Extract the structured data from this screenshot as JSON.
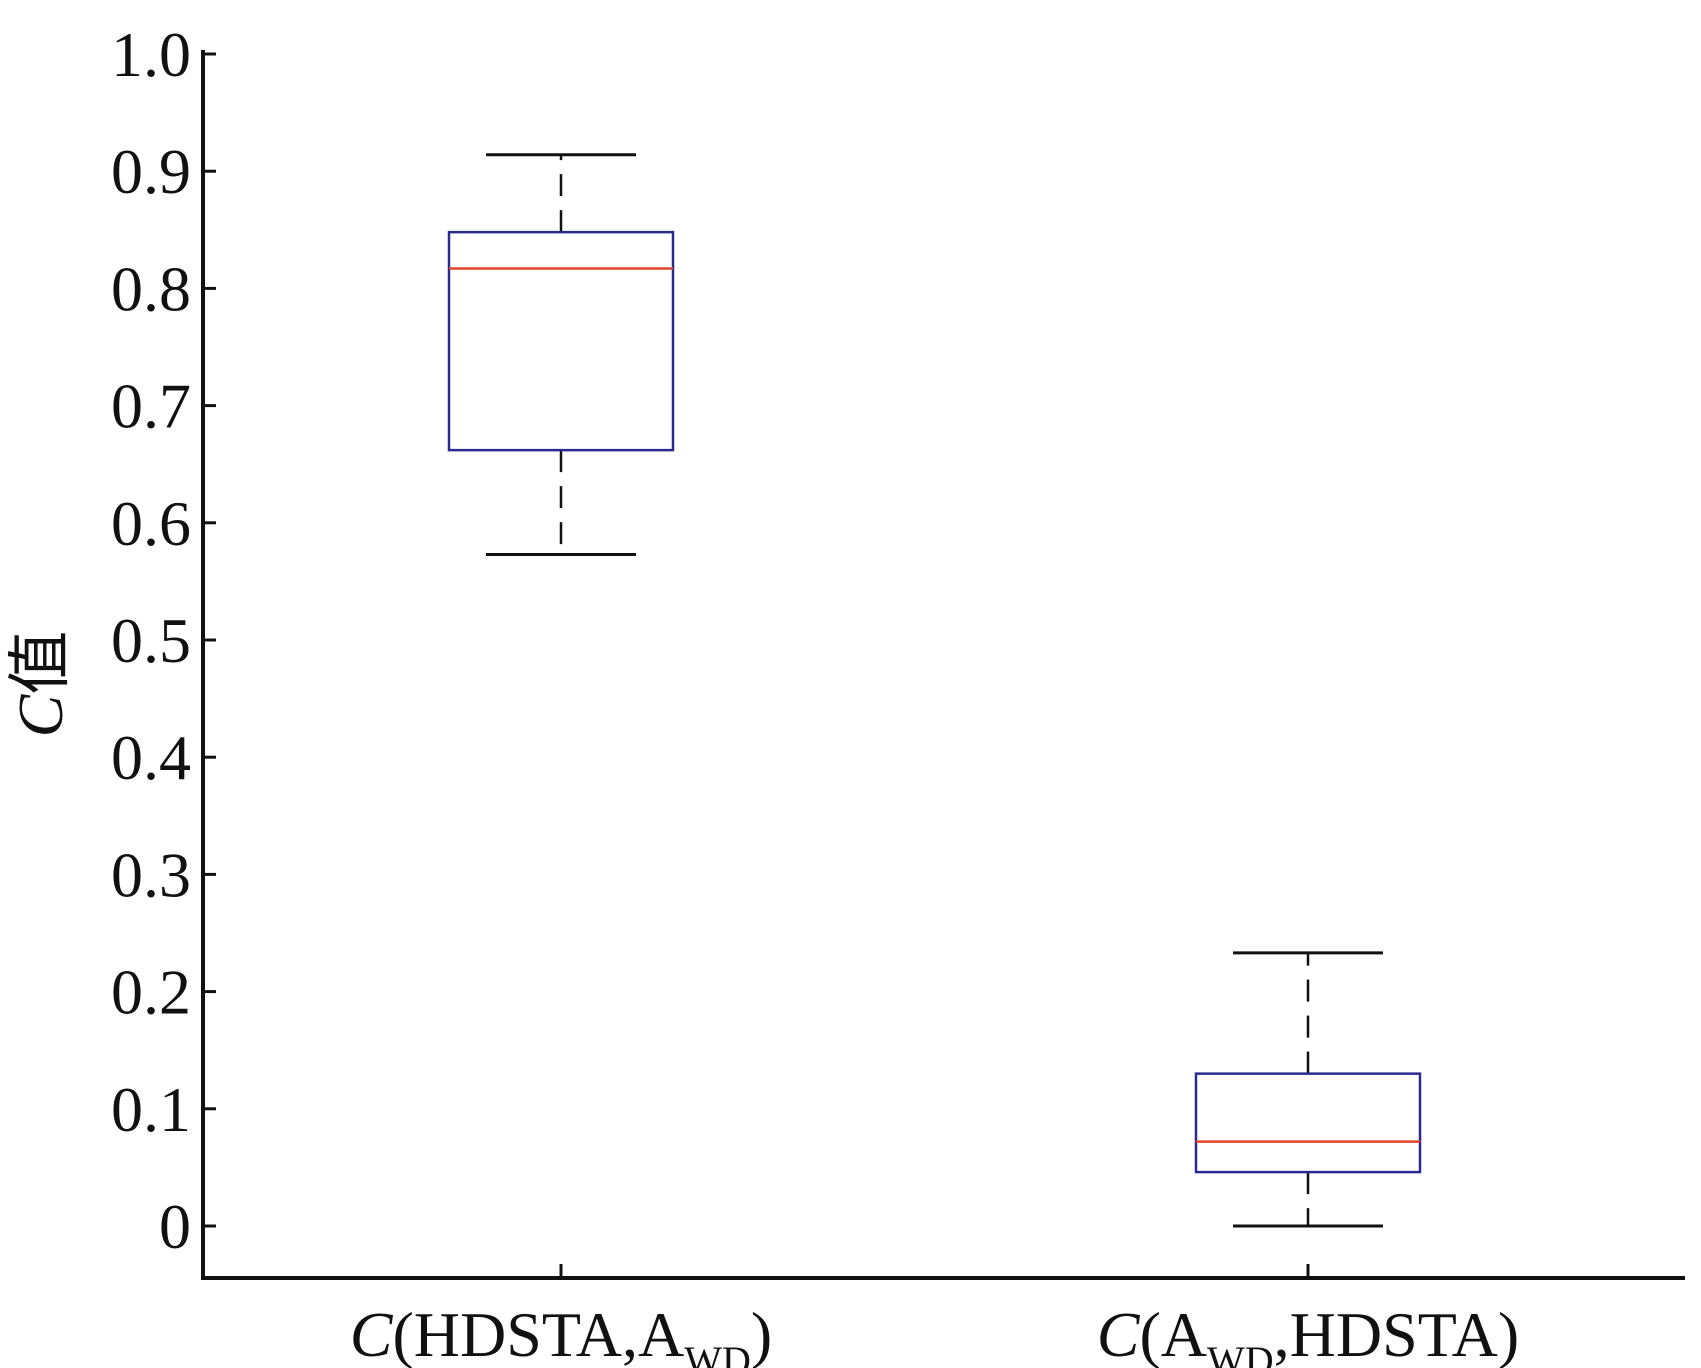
{
  "chart_data": {
    "type": "box",
    "ylabel": {
      "italic": "C",
      "text": "值"
    },
    "ylim": [
      -0.045,
      1.0
    ],
    "yticks": [
      0,
      0.1,
      0.2,
      0.3,
      0.4,
      0.5,
      0.6,
      0.7,
      0.8,
      0.9,
      1.0
    ],
    "ytick_labels": [
      "0",
      "0.1",
      "0.2",
      "0.3",
      "0.4",
      "0.5",
      "0.6",
      "0.7",
      "0.8",
      "0.9",
      "1.0"
    ],
    "categories": [
      {
        "prefix": "C",
        "open": "(",
        "a": "HDSTA,A",
        "sub": "WD",
        "b": "",
        "close": ")"
      },
      {
        "prefix": "C",
        "open": "(",
        "a": "A",
        "sub": "WD",
        "b": ",HDSTA",
        "close": ")"
      }
    ],
    "boxes": [
      {
        "whisker_low": 0.573,
        "q1": 0.662,
        "median": 0.817,
        "q3": 0.848,
        "whisker_high": 0.914
      },
      {
        "whisker_low": 0.0,
        "q1": 0.046,
        "median": 0.072,
        "q3": 0.13,
        "whisker_high": 0.233
      }
    ],
    "colors": {
      "box": "#2b2b8f",
      "median": "#e0442a",
      "whisker": "#111111",
      "axis": "#111111"
    }
  }
}
